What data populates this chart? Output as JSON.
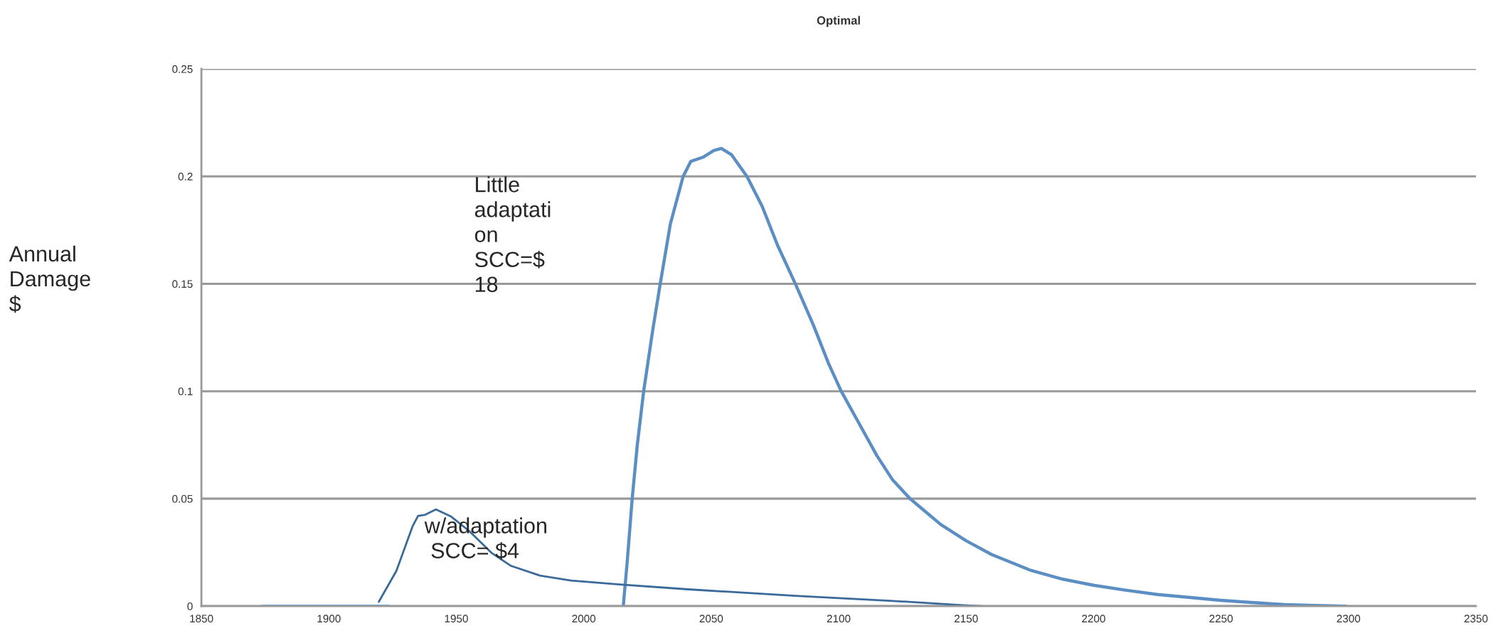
{
  "chart_data": {
    "type": "line",
    "title": "Optimal",
    "ylabel": "Annual\nDamage\n$",
    "series": [
      {
        "color": "#5b8fc4",
        "x": [
          2015.5,
          2017,
          2019,
          2021,
          2023.5,
          2027,
          2030,
          2034,
          2039,
          2042,
          2047,
          2051,
          2054,
          2058,
          2064,
          2070,
          2076,
          2083,
          2090,
          2096,
          2101,
          2108,
          2115,
          2121,
          2128,
          2133,
          2140,
          2150,
          2160,
          2175,
          2188,
          2200,
          2212,
          2225,
          2238,
          2250,
          2262,
          2275,
          2287,
          2299
        ],
        "values": [
          0,
          0.02,
          0.05,
          0.075,
          0.1,
          0.128,
          0.15,
          0.178,
          0.2,
          0.207,
          0.209,
          0.212,
          0.213,
          0.21,
          0.2,
          0.186,
          0.168,
          0.15,
          0.131,
          0.113,
          0.1,
          0.085,
          0.07,
          0.059,
          0.05,
          0.045,
          0.038,
          0.0304,
          0.024,
          0.0168,
          0.0125,
          0.0097,
          0.0075,
          0.0054,
          0.004,
          0.0027,
          0.0017,
          0.0007,
          0.0003,
          0
        ]
      },
      {
        "color": "#3a6a9a",
        "x": [
          1919.6,
          1926.5,
          1932.8,
          1935,
          1937.8,
          1942,
          1947.8,
          1955,
          1964,
          1971.5,
          1982.8,
          1995,
          2014,
          2041,
          2083,
          2120,
          2150,
          2156
        ],
        "values": [
          0.002,
          0.0164,
          0.037,
          0.042,
          0.0425,
          0.045,
          0.0418,
          0.035,
          0.0246,
          0.0187,
          0.0142,
          0.0119,
          0.0101,
          0.0078,
          0.0048,
          0.0025,
          0.0003,
          0
        ]
      },
      {
        "color": "#5b9bd5",
        "x": [
          1873.8,
          1923.4
        ],
        "values": [
          0,
          0
        ]
      }
    ],
    "annotations": [
      "Little\nadaptati\non\nSCC=$\n18",
      "w/adaptation\n SCC= $4"
    ],
    "xlim": [
      1850,
      2350
    ],
    "xticks": [
      1850,
      1900,
      1950,
      2000,
      2050,
      2100,
      2150,
      2200,
      2250,
      2300,
      2350
    ],
    "ylim": [
      0,
      0.25
    ],
    "yticks": [
      0,
      0.05,
      0.1,
      0.15,
      0.2,
      0.25
    ],
    "grid": "y",
    "marker": "none",
    "line_style": "solid"
  }
}
